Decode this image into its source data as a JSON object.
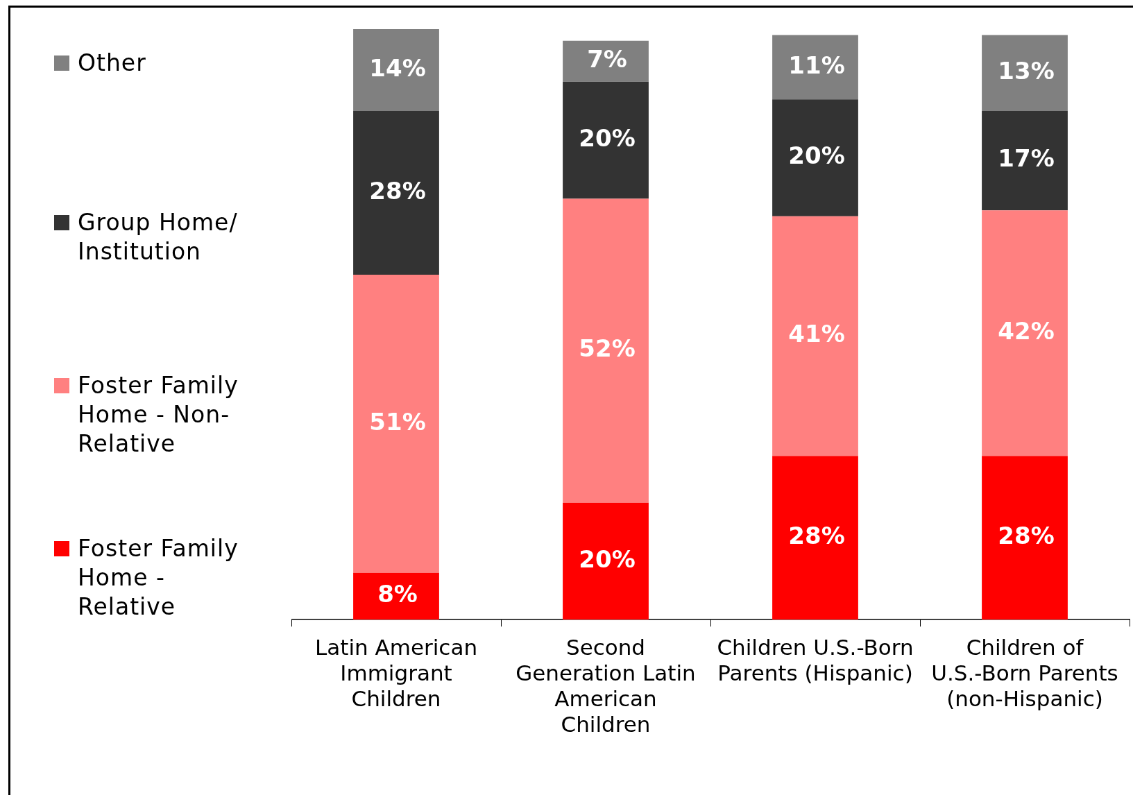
{
  "chart_data": {
    "type": "bar",
    "stacked": true,
    "legend": "left",
    "categories": [
      "Latin American Immigrant Children",
      "Second Generation Latin American Children",
      "Children U.S.-Born Parents (Hispanic)",
      "Children of U.S.-Born Parents (non-Hispanic)"
    ],
    "series": [
      {
        "name": "Foster Family Home - Relative",
        "color": "#ff0000",
        "values": [
          8,
          20,
          28,
          28
        ],
        "value_labels": [
          "8%",
          "20%",
          "28%",
          "28%"
        ]
      },
      {
        "name": "Foster Family Home - Non-Relative",
        "color": "#ff8080",
        "values": [
          51,
          52,
          41,
          42
        ],
        "value_labels": [
          "51%",
          "52%",
          "41%",
          "42%"
        ]
      },
      {
        "name": "Group Home/ Institution",
        "color": "#333333",
        "values": [
          28,
          20,
          20,
          17
        ],
        "value_labels": [
          "28%",
          "20%",
          "20%",
          "17%"
        ]
      },
      {
        "name": "Other",
        "color": "#808080",
        "values": [
          14,
          7,
          11,
          13
        ],
        "value_labels": [
          "14%",
          "7%",
          "11%",
          "13%"
        ]
      }
    ]
  }
}
